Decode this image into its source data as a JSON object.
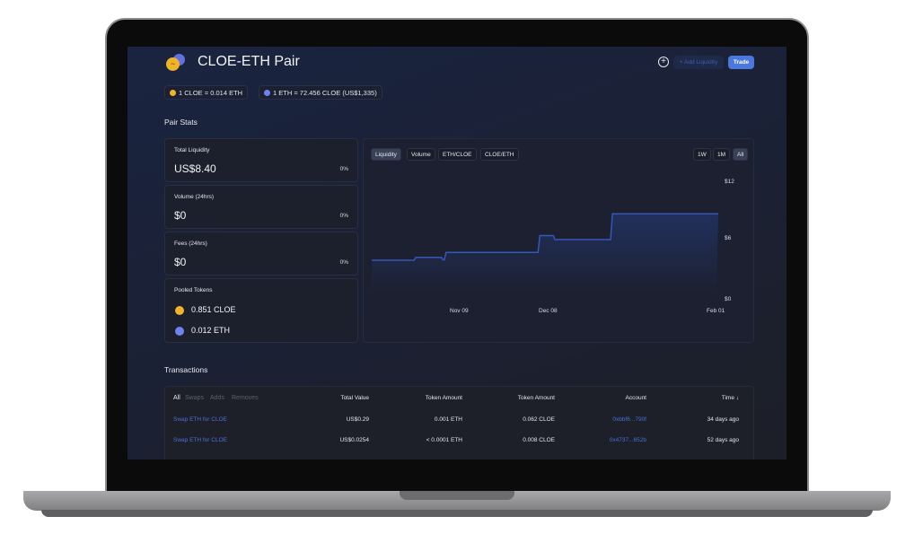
{
  "header": {
    "title": "CLOE-ETH Pair",
    "add_liquidity_label": "+ Add Liquidity",
    "trade_label": "Trade",
    "icons": [
      "token-pair-icon",
      "plus-circle-icon"
    ]
  },
  "prices": [
    {
      "text": "1 CLOE = 0.014 ETH",
      "icon": "cloe-token-icon"
    },
    {
      "text": "1 ETH = 72.456 CLOE (US$1,335)",
      "icon": "eth-token-icon"
    }
  ],
  "pair_stats": {
    "title": "Pair Stats",
    "total_liquidity": {
      "label": "Total Liquidity",
      "value": "US$8.40",
      "change": "0%"
    },
    "volume": {
      "label": "Volume (24hrs)",
      "value": "$0",
      "change": "0%"
    },
    "fees": {
      "label": "Fees (24hrs)",
      "value": "$0",
      "change": "0%"
    },
    "pooled": {
      "label": "Pooled Tokens",
      "cloe": "0.851 CLOE",
      "eth": "0.012 ETH"
    }
  },
  "chart": {
    "tabs": [
      "Liquidity",
      "Volume",
      "ETH/CLOE",
      "CLOE/ETH"
    ],
    "active_tab": "Liquidity",
    "ranges": [
      "1W",
      "1M",
      "All"
    ],
    "active_range": "All",
    "colors": {
      "line": "#3457b8",
      "fill": "#243a7a"
    }
  },
  "chart_data": {
    "type": "area",
    "step": true,
    "x": [
      "Oct 11",
      "Oct 25",
      "Nov 03",
      "Nov 04",
      "Dec 04",
      "Dec 09",
      "Dec 28",
      "Feb 01"
    ],
    "values": [
      4.0,
      4.3,
      4.05,
      4.8,
      6.5,
      6.1,
      8.7,
      8.7
    ],
    "x_ticks": [
      "Nov 09",
      "Dec 08",
      "Feb 01"
    ],
    "y_ticks": [
      "$12",
      "$6",
      "$0"
    ],
    "ylim": [
      0,
      12
    ],
    "grid": false
  },
  "transactions": {
    "title": "Transactions",
    "filters": [
      "All",
      "Swaps",
      "Adds",
      "Removes"
    ],
    "active_filter": "All",
    "columns": [
      "Total Value",
      "Token Amount",
      "Token Amount",
      "Account",
      "Time ↓"
    ],
    "rows": [
      {
        "action": "Swap ETH for CLOE",
        "total": "US$0.29",
        "amount1": "0.001 ETH",
        "amount2": "0.062 CLOE",
        "account": "0xbbf6...790f",
        "time": "34 days ago"
      },
      {
        "action": "Swap ETH for CLOE",
        "total": "US$0.0254",
        "amount1": "< 0.0001 ETH",
        "amount2": "0.008 CLOE",
        "account": "0x4737...652b",
        "time": "52 days ago"
      }
    ]
  }
}
